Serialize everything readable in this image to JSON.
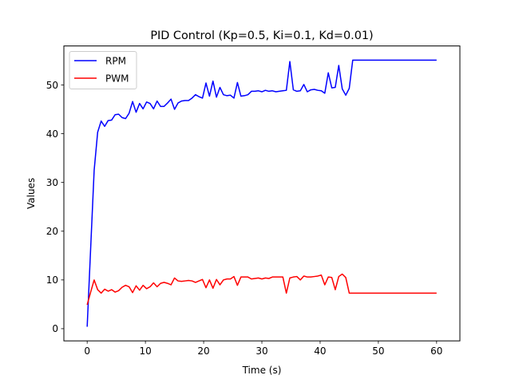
{
  "chart_data": {
    "type": "line",
    "title": "PID Control (Kp=0.5, Ki=0.1, Kd=0.01)",
    "xlabel": "Time (s)",
    "ylabel": "Values",
    "xlim": [
      -4,
      64
    ],
    "ylim": [
      -2.5,
      58
    ],
    "xticks": [
      0,
      10,
      20,
      30,
      40,
      50,
      60
    ],
    "yticks": [
      0,
      10,
      20,
      30,
      40,
      50
    ],
    "grid": false,
    "legend": "top-left",
    "x": [
      0,
      0.6,
      1.2,
      1.8,
      2.4,
      3.0,
      3.6,
      4.2,
      4.8,
      5.4,
      6.0,
      6.6,
      7.2,
      7.8,
      8.4,
      9.0,
      9.6,
      10.2,
      10.8,
      11.4,
      12.0,
      12.6,
      13.2,
      13.8,
      14.4,
      15.0,
      15.6,
      16.2,
      16.8,
      17.4,
      18.0,
      18.6,
      19.2,
      19.8,
      20.4,
      21.0,
      21.6,
      22.2,
      22.8,
      23.4,
      24.0,
      24.6,
      25.2,
      25.8,
      26.4,
      27.0,
      27.6,
      28.2,
      28.8,
      29.4,
      30.0,
      30.6,
      31.2,
      31.8,
      32.4,
      33.0,
      33.6,
      34.2,
      34.8,
      35.4,
      36.0,
      36.6,
      37.2,
      37.8,
      38.4,
      39.0,
      39.6,
      40.2,
      40.8,
      41.4,
      42.0,
      42.6,
      43.2,
      43.8,
      44.4,
      45.0,
      45.6,
      46.2,
      46.8,
      47.4,
      48.0,
      48.6,
      49.2,
      49.8,
      50.4,
      51.0,
      51.6,
      52.2,
      52.8,
      53.4,
      54.0,
      54.6,
      55.2,
      55.8,
      56.4,
      57.0,
      57.6,
      58.2,
      58.8,
      59.4,
      60.0
    ],
    "series": [
      {
        "name": "RPM",
        "color": "#0000ff",
        "values": [
          0.4,
          16.5,
          32.5,
          40.3,
          42.6,
          41.5,
          42.7,
          42.8,
          43.9,
          44.0,
          43.3,
          43.1,
          44.2,
          46.6,
          44.4,
          46.2,
          45.1,
          46.5,
          46.2,
          45.1,
          46.7,
          45.6,
          45.6,
          46.3,
          47.1,
          45.0,
          46.3,
          46.7,
          46.8,
          46.8,
          47.3,
          48.0,
          47.6,
          47.3,
          50.4,
          47.7,
          50.8,
          47.5,
          49.5,
          48.0,
          47.8,
          47.9,
          47.3,
          50.5,
          47.7,
          47.8,
          48.0,
          48.7,
          48.7,
          48.8,
          48.6,
          48.9,
          48.7,
          48.8,
          48.6,
          48.7,
          48.8,
          48.9,
          54.8,
          49.0,
          48.7,
          48.8,
          50.1,
          48.6,
          49.0,
          49.1,
          48.9,
          48.8,
          48.3,
          52.5,
          49.4,
          49.5,
          54.0,
          49.2,
          47.9,
          49.3,
          55.1,
          55.1,
          55.1,
          55.1,
          55.1,
          55.1,
          55.1,
          55.1,
          55.1,
          55.1,
          55.1,
          55.1,
          55.1,
          55.1,
          55.1,
          55.1,
          55.1,
          55.1,
          55.1,
          55.1,
          55.1,
          55.1,
          55.1,
          55.1,
          55.1
        ]
      },
      {
        "name": "PWM",
        "color": "#ff0000",
        "values": [
          4.9,
          7.5,
          10.0,
          8.0,
          7.3,
          8.1,
          7.7,
          8.0,
          7.5,
          7.8,
          8.5,
          8.9,
          8.6,
          7.4,
          8.8,
          7.9,
          8.9,
          8.2,
          8.6,
          9.4,
          8.6,
          9.3,
          9.5,
          9.3,
          9.0,
          10.4,
          9.8,
          9.7,
          9.8,
          9.9,
          9.8,
          9.5,
          9.8,
          10.1,
          8.4,
          10.0,
          8.3,
          10.1,
          9.0,
          10.0,
          10.2,
          10.2,
          10.7,
          8.9,
          10.6,
          10.6,
          10.6,
          10.2,
          10.3,
          10.4,
          10.2,
          10.4,
          10.3,
          10.6,
          10.6,
          10.6,
          10.6,
          7.3,
          10.4,
          10.6,
          10.7,
          10.0,
          10.8,
          10.6,
          10.6,
          10.7,
          10.8,
          11.0,
          9.0,
          10.6,
          10.5,
          8.0,
          10.7,
          11.2,
          10.5,
          7.3,
          7.3,
          7.3,
          7.3,
          7.3,
          7.3,
          7.3,
          7.3,
          7.3,
          7.3,
          7.3,
          7.3,
          7.3,
          7.3,
          7.3,
          7.3,
          7.3,
          7.3,
          7.3,
          7.3,
          7.3,
          7.3,
          7.3,
          7.3,
          7.3,
          7.3
        ]
      }
    ]
  }
}
